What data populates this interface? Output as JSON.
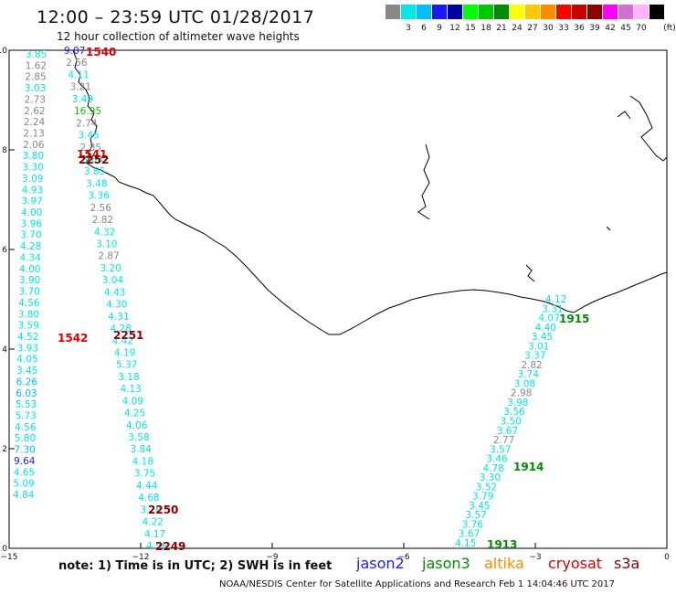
{
  "header": {
    "title": "12:00 – 23:59 UTC 01/28/2017",
    "subtitle": "12 hour collection of altimeter wave heights"
  },
  "colorscale": {
    "unit_label": "(ft)",
    "bins": [
      {
        "label": "",
        "color": "#888888"
      },
      {
        "label": "3",
        "color": "#00e8e8"
      },
      {
        "label": "6",
        "color": "#00bfff"
      },
      {
        "label": "9",
        "color": "#1a1aff"
      },
      {
        "label": "12",
        "color": "#0000a0"
      },
      {
        "label": "15",
        "color": "#00ff00"
      },
      {
        "label": "18",
        "color": "#00c800"
      },
      {
        "label": "21",
        "color": "#008c00"
      },
      {
        "label": "24",
        "color": "#ffff00"
      },
      {
        "label": "27",
        "color": "#ffc800"
      },
      {
        "label": "30",
        "color": "#ff8c00"
      },
      {
        "label": "33",
        "color": "#ff0000"
      },
      {
        "label": "36",
        "color": "#c80000"
      },
      {
        "label": "39",
        "color": "#8c0000"
      },
      {
        "label": "42",
        "color": "#ff00ff"
      },
      {
        "label": "45",
        "color": "#d070d0"
      },
      {
        "label": "70",
        "color": "#ffb4ff"
      },
      {
        "label": "",
        "color": "#000000"
      }
    ]
  },
  "axes": {
    "x_ticks": [
      {
        "label": "−15",
        "value": -15
      },
      {
        "label": "−12",
        "value": -12
      },
      {
        "label": "−9",
        "value": -9
      },
      {
        "label": "−6",
        "value": -6
      },
      {
        "label": "−3",
        "value": -3
      },
      {
        "label": "0",
        "value": 0
      }
    ],
    "y_ticks": [
      {
        "label": "0",
        "value": 0
      },
      {
        "label": "2",
        "value": 2
      },
      {
        "label": "4",
        "value": 4
      },
      {
        "label": "6",
        "value": 6
      },
      {
        "label": "8",
        "value": 8
      },
      {
        "label": "10",
        "value": 10
      }
    ],
    "x_range": [
      -15,
      0
    ],
    "y_range": [
      0,
      10
    ]
  },
  "tracks": [
    {
      "points": [
        {
          "v": "3.85",
          "c": "#00e8e8"
        },
        {
          "v": "1.62",
          "c": "#888888"
        },
        {
          "v": "2.85",
          "c": "#888888"
        },
        {
          "v": "3.03",
          "c": "#00e8e8"
        },
        {
          "v": "2.73",
          "c": "#888888"
        },
        {
          "v": "2.62",
          "c": "#888888"
        },
        {
          "v": "2.24",
          "c": "#888888"
        },
        {
          "v": "2.13",
          "c": "#888888"
        },
        {
          "v": "2.06",
          "c": "#888888"
        },
        {
          "v": "3.80",
          "c": "#00e8e8"
        },
        {
          "v": "3.30",
          "c": "#00e8e8"
        },
        {
          "v": "3.09",
          "c": "#00e8e8"
        },
        {
          "v": "4.93",
          "c": "#00e8e8"
        },
        {
          "v": "3.97",
          "c": "#00e8e8"
        },
        {
          "v": "4.00",
          "c": "#00e8e8"
        },
        {
          "v": "3.96",
          "c": "#00e8e8"
        },
        {
          "v": "3.70",
          "c": "#00e8e8"
        },
        {
          "v": "4.28",
          "c": "#00e8e8"
        },
        {
          "v": "4.34",
          "c": "#00e8e8"
        },
        {
          "v": "4.00",
          "c": "#00e8e8"
        },
        {
          "v": "3.90",
          "c": "#00e8e8"
        },
        {
          "v": "3.70",
          "c": "#00e8e8"
        },
        {
          "v": "4.56",
          "c": "#00e8e8"
        },
        {
          "v": "3.80",
          "c": "#00e8e8"
        },
        {
          "v": "3.59",
          "c": "#00e8e8"
        },
        {
          "v": "4.52",
          "c": "#00e8e8"
        },
        {
          "v": "3.93",
          "c": "#00e8e8"
        },
        {
          "v": "4.05",
          "c": "#00e8e8"
        },
        {
          "v": "3.45",
          "c": "#00e8e8"
        },
        {
          "v": "6.26",
          "c": "#00bfff"
        },
        {
          "v": "6.03",
          "c": "#00bfff"
        },
        {
          "v": "5.53",
          "c": "#00e8e8"
        },
        {
          "v": "5.73",
          "c": "#00e8e8"
        },
        {
          "v": "4.56",
          "c": "#00e8e8"
        },
        {
          "v": "5.80",
          "c": "#00e8e8"
        },
        {
          "v": "7.30",
          "c": "#00bfff"
        },
        {
          "v": "9.64",
          "c": "#1a1aff"
        },
        {
          "v": "4.65",
          "c": "#00e8e8"
        },
        {
          "v": "5.09",
          "c": "#00e8e8"
        },
        {
          "v": "4.84",
          "c": "#00e8e8"
        }
      ]
    },
    {
      "points": [
        {
          "v": "9.07",
          "c": "#1a1aff"
        },
        {
          "v": "2.56",
          "c": "#888888"
        },
        {
          "v": "4.11",
          "c": "#00e8e8"
        },
        {
          "v": "3.21",
          "c": "#888888"
        },
        {
          "v": "3.49",
          "c": "#00e8e8"
        },
        {
          "v": "16.95",
          "c": "#00c800"
        },
        {
          "v": "2.74",
          "c": "#888888"
        },
        {
          "v": "3.45",
          "c": "#00e8e8"
        },
        {
          "v": "2.85",
          "c": "#888888"
        },
        {
          "v": "3.65",
          "c": "#00e8e8"
        },
        {
          "v": "3.85",
          "c": "#00e8e8"
        },
        {
          "v": "3.48",
          "c": "#00e8e8"
        },
        {
          "v": "3.36",
          "c": "#00e8e8"
        },
        {
          "v": "2.56",
          "c": "#888888"
        },
        {
          "v": "2.82",
          "c": "#888888"
        },
        {
          "v": "4.32",
          "c": "#00e8e8"
        },
        {
          "v": "3.10",
          "c": "#00e8e8"
        },
        {
          "v": "2.87",
          "c": "#888888"
        },
        {
          "v": "3.20",
          "c": "#00e8e8"
        },
        {
          "v": "3.04",
          "c": "#00e8e8"
        },
        {
          "v": "4.43",
          "c": "#00e8e8"
        },
        {
          "v": "4.30",
          "c": "#00e8e8"
        },
        {
          "v": "4.31",
          "c": "#00e8e8"
        },
        {
          "v": "4.28",
          "c": "#00e8e8"
        },
        {
          "v": "4.42",
          "c": "#00e8e8"
        },
        {
          "v": "4.19",
          "c": "#00e8e8"
        },
        {
          "v": "5.37",
          "c": "#00e8e8"
        },
        {
          "v": "3.18",
          "c": "#00e8e8"
        },
        {
          "v": "4.13",
          "c": "#00e8e8"
        },
        {
          "v": "4.09",
          "c": "#00e8e8"
        },
        {
          "v": "4.25",
          "c": "#00e8e8"
        },
        {
          "v": "4.06",
          "c": "#00e8e8"
        },
        {
          "v": "3.58",
          "c": "#00e8e8"
        },
        {
          "v": "3.84",
          "c": "#00e8e8"
        },
        {
          "v": "4.18",
          "c": "#00e8e8"
        },
        {
          "v": "3.75",
          "c": "#00e8e8"
        },
        {
          "v": "4.44",
          "c": "#00e8e8"
        },
        {
          "v": "4.68",
          "c": "#00e8e8"
        },
        {
          "v": "3.76",
          "c": "#00e8e8"
        },
        {
          "v": "4.22",
          "c": "#00e8e8"
        },
        {
          "v": "4.17",
          "c": "#00e8e8"
        },
        {
          "v": "4.56",
          "c": "#00e8e8"
        }
      ]
    },
    {
      "points": [
        {
          "v": "4.12",
          "c": "#00e8e8"
        },
        {
          "v": "3.31",
          "c": "#00e8e8"
        },
        {
          "v": "4.07",
          "c": "#00e8e8"
        },
        {
          "v": "4.40",
          "c": "#00e8e8"
        },
        {
          "v": "3.45",
          "c": "#00e8e8"
        },
        {
          "v": "3.01",
          "c": "#00e8e8"
        },
        {
          "v": "3.37",
          "c": "#00e8e8"
        },
        {
          "v": "2.82",
          "c": "#888888"
        },
        {
          "v": "3.74",
          "c": "#00e8e8"
        },
        {
          "v": "3.08",
          "c": "#00e8e8"
        },
        {
          "v": "2.98",
          "c": "#888888"
        },
        {
          "v": "3.98",
          "c": "#00e8e8"
        },
        {
          "v": "3.56",
          "c": "#00e8e8"
        },
        {
          "v": "3.50",
          "c": "#00e8e8"
        },
        {
          "v": "3.67",
          "c": "#00e8e8"
        },
        {
          "v": "2.77",
          "c": "#888888"
        },
        {
          "v": "3.57",
          "c": "#00e8e8"
        },
        {
          "v": "3.46",
          "c": "#00e8e8"
        },
        {
          "v": "4.78",
          "c": "#00e8e8"
        },
        {
          "v": "3.30",
          "c": "#00e8e8"
        },
        {
          "v": "3.52",
          "c": "#00e8e8"
        },
        {
          "v": "3.79",
          "c": "#00e8e8"
        },
        {
          "v": "3.45",
          "c": "#00e8e8"
        },
        {
          "v": "3.57",
          "c": "#00e8e8"
        },
        {
          "v": "3.76",
          "c": "#00e8e8"
        },
        {
          "v": "3.67",
          "c": "#00e8e8"
        },
        {
          "v": "4.15",
          "c": "#00e8e8"
        }
      ]
    }
  ],
  "time_labels": [
    {
      "text": "1540",
      "color": "#dd0000"
    },
    {
      "text": "1541",
      "color": "#dd0000"
    },
    {
      "text": "2252",
      "color": "#8c0000"
    },
    {
      "text": "1542",
      "color": "#dd0000"
    },
    {
      "text": "2251",
      "color": "#8c0000"
    },
    {
      "text": "2250",
      "color": "#8c0000"
    },
    {
      "text": "2249",
      "color": "#8c0000"
    },
    {
      "text": "1915",
      "color": "#008c00"
    },
    {
      "text": "1914",
      "color": "#008c00"
    },
    {
      "text": "1913",
      "color": "#008c00"
    }
  ],
  "legend": {
    "note": "note:  1) Time is in UTC;  2) SWH is in feet",
    "satellites": [
      {
        "name": "jason2",
        "color": "#1a1aff"
      },
      {
        "name": "jason3",
        "color": "#008c00"
      },
      {
        "name": "altika",
        "color": "#ff8c00"
      },
      {
        "name": "cryosat",
        "color": "#dd0000"
      },
      {
        "name": "s3a",
        "color": "#8c0000"
      }
    ]
  },
  "footer": {
    "credit": "NOAA/NESDIS Center for Satellite Applications and Research   Feb  1 14:04:46 UTC 2017"
  }
}
